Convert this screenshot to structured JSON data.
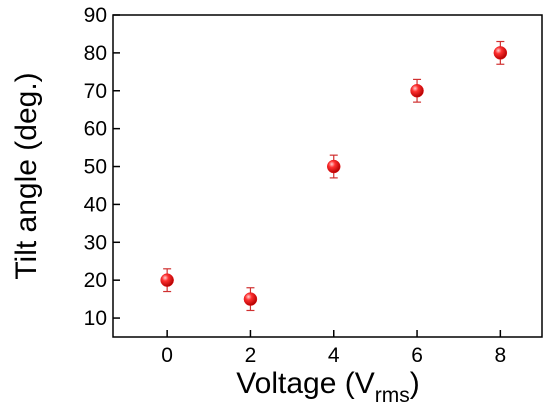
{
  "chart_data": {
    "type": "scatter",
    "title": "",
    "xlabel": "Voltage (V",
    "xlabel_sub": "rms",
    "xlabel_close": ")",
    "ylabel": "Tilt angle (deg.)",
    "xlim": [
      -1.3,
      9.0
    ],
    "ylim": [
      5,
      90
    ],
    "xticks": [
      0,
      2,
      4,
      6,
      8
    ],
    "yticks": [
      10,
      20,
      30,
      40,
      50,
      60,
      70,
      80,
      90
    ],
    "marker_color": "#e8191c",
    "errorbar_color": "#d03030",
    "grid": false,
    "series": [
      {
        "points": [
          {
            "x": 0,
            "y": 20,
            "err": 3
          },
          {
            "x": 2,
            "y": 15,
            "err": 3
          },
          {
            "x": 4,
            "y": 50,
            "err": 3
          },
          {
            "x": 6,
            "y": 70,
            "err": 3
          },
          {
            "x": 8,
            "y": 80,
            "err": 3
          }
        ]
      }
    ]
  }
}
